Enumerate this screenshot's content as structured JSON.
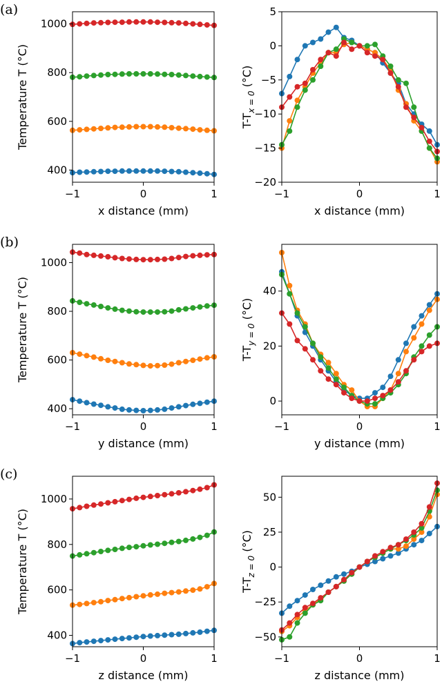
{
  "chart_data": [
    {
      "type": "line",
      "row_label": "(a)",
      "xlabel": "x distance (mm)",
      "ylabel": "Temperature T (°C)",
      "xlim": [
        -1,
        1
      ],
      "ylim": [
        350,
        1050
      ],
      "xticks": [
        -1,
        0,
        1
      ],
      "xtick_labels": [
        "−1",
        "0",
        "1"
      ],
      "yticks": [
        400,
        600,
        800,
        1000
      ],
      "ytick_labels": [
        "400",
        "600",
        "800",
        "1000"
      ],
      "x": [
        -1.0,
        -0.9,
        -0.8,
        -0.7,
        -0.6,
        -0.5,
        -0.4,
        -0.3,
        -0.2,
        -0.1,
        0.0,
        0.1,
        0.2,
        0.3,
        0.4,
        0.5,
        0.6,
        0.7,
        0.8,
        0.9,
        1.0
      ],
      "series": [
        {
          "color": "#1f77b4",
          "values": [
            389,
            391,
            392,
            393,
            394,
            395,
            395,
            396,
            396,
            396,
            396,
            396,
            396,
            395,
            394,
            393,
            391,
            389,
            387,
            385,
            382
          ]
        },
        {
          "color": "#ff7f0e",
          "values": [
            563,
            565,
            567,
            569,
            571,
            573,
            575,
            576,
            577,
            578,
            578,
            578,
            577,
            576,
            574,
            572,
            570,
            568,
            565,
            563,
            561
          ]
        },
        {
          "color": "#2ca02c",
          "values": [
            781,
            783,
            786,
            788,
            790,
            792,
            793,
            794,
            795,
            795,
            795,
            795,
            794,
            793,
            792,
            790,
            788,
            786,
            784,
            782,
            780
          ]
        },
        {
          "color": "#d62728",
          "values": [
            998,
            1000,
            1002,
            1004,
            1005,
            1006,
            1007,
            1007,
            1008,
            1008,
            1008,
            1008,
            1007,
            1006,
            1005,
            1004,
            1002,
            1000,
            998,
            996,
            994
          ]
        }
      ]
    },
    {
      "type": "line",
      "xlabel": "x distance (mm)",
      "ylabel_main": "T-T",
      "ylabel_sub": "x = 0",
      "ylabel_tail": " (°C)",
      "xlim": [
        -1,
        1
      ],
      "ylim": [
        -20,
        5
      ],
      "xticks": [
        -1,
        0,
        1
      ],
      "xtick_labels": [
        "−1",
        "0",
        "1"
      ],
      "yticks": [
        -20,
        -15,
        -10,
        -5,
        0,
        5
      ],
      "ytick_labels": [
        "−20",
        "−15",
        "−10",
        "−5",
        "0",
        "5"
      ],
      "x": [
        -1.0,
        -0.9,
        -0.8,
        -0.7,
        -0.6,
        -0.5,
        -0.4,
        -0.3,
        -0.2,
        -0.1,
        0.0,
        0.1,
        0.2,
        0.3,
        0.4,
        0.5,
        0.6,
        0.7,
        0.8,
        0.9,
        1.0
      ],
      "series": [
        {
          "color": "#1f77b4",
          "values": [
            -7.0,
            -4.5,
            -2.0,
            0.0,
            0.5,
            1.0,
            2.0,
            2.7,
            1.2,
            0.8,
            0.0,
            -0.5,
            -1.0,
            -2.5,
            -4.0,
            -5.5,
            -8.5,
            -10.0,
            -11.5,
            -12.5,
            -14.5
          ]
        },
        {
          "color": "#ff7f0e",
          "values": [
            -15.0,
            -11.0,
            -8.0,
            -6.0,
            -4.0,
            -2.5,
            -1.0,
            -1.0,
            0.2,
            0.5,
            0.0,
            -0.5,
            -1.0,
            -2.0,
            -3.5,
            -6.5,
            -8.5,
            -11.0,
            -12.5,
            -15.0,
            -17.0
          ]
        },
        {
          "color": "#2ca02c",
          "values": [
            -14.5,
            -12.5,
            -9.0,
            -6.5,
            -5.0,
            -3.0,
            -1.0,
            -0.5,
            1.0,
            0.5,
            0.0,
            0.0,
            0.2,
            -1.5,
            -3.0,
            -5.0,
            -5.5,
            -9.0,
            -12.5,
            -15.0,
            -16.5
          ]
        },
        {
          "color": "#d62728",
          "values": [
            -9.0,
            -7.5,
            -6.0,
            -5.5,
            -3.5,
            -2.0,
            -1.0,
            -1.5,
            0.5,
            -0.5,
            0.0,
            -1.0,
            -1.5,
            -2.0,
            -4.0,
            -6.0,
            -9.0,
            -10.5,
            -12.0,
            -14.0,
            -15.5
          ]
        }
      ]
    },
    {
      "type": "line",
      "row_label": "(b)",
      "xlabel": "y distance (mm)",
      "ylabel": "Temperature T (°C)",
      "xlim": [
        -1,
        1
      ],
      "ylim": [
        375,
        1075
      ],
      "xticks": [
        -1,
        0,
        1
      ],
      "xtick_labels": [
        "−1",
        "0",
        "1"
      ],
      "yticks": [
        400,
        600,
        800,
        1000
      ],
      "ytick_labels": [
        "400",
        "600",
        "800",
        "1000"
      ],
      "x": [
        -1.0,
        -0.9,
        -0.8,
        -0.7,
        -0.6,
        -0.5,
        -0.4,
        -0.3,
        -0.2,
        -0.1,
        0.0,
        0.1,
        0.2,
        0.3,
        0.4,
        0.5,
        0.6,
        0.7,
        0.8,
        0.9,
        1.0
      ],
      "series": [
        {
          "color": "#1f77b4",
          "values": [
            437,
            431,
            425,
            419,
            414,
            408,
            403,
            398,
            395,
            393,
            392,
            393,
            395,
            398,
            403,
            408,
            413,
            418,
            422,
            427,
            431
          ]
        },
        {
          "color": "#ff7f0e",
          "values": [
            630,
            624,
            618,
            612,
            605,
            599,
            594,
            589,
            584,
            581,
            578,
            576,
            577,
            579,
            583,
            589,
            594,
            599,
            604,
            609,
            613
          ]
        },
        {
          "color": "#2ca02c",
          "values": [
            843,
            837,
            831,
            826,
            820,
            814,
            809,
            804,
            801,
            798,
            797,
            797,
            797,
            798,
            801,
            806,
            810,
            814,
            818,
            822,
            825
          ]
        },
        {
          "color": "#d62728",
          "values": [
            1043,
            1039,
            1033,
            1030,
            1027,
            1024,
            1020,
            1017,
            1015,
            1013,
            1012,
            1012,
            1013,
            1014,
            1017,
            1021,
            1025,
            1028,
            1030,
            1032,
            1033
          ]
        }
      ]
    },
    {
      "type": "line",
      "xlabel": "y distance (mm)",
      "ylabel_main": "T-T",
      "ylabel_sub": "y = 0",
      "ylabel_tail": " (°C)",
      "xlim": [
        -1,
        1
      ],
      "ylim": [
        -5,
        57
      ],
      "xticks": [
        -1,
        0,
        1
      ],
      "xtick_labels": [
        "−1",
        "0",
        "1"
      ],
      "yticks": [
        0,
        20,
        40
      ],
      "ytick_labels": [
        "0",
        "20",
        "40"
      ],
      "x": [
        -1.0,
        -0.9,
        -0.8,
        -0.7,
        -0.6,
        -0.5,
        -0.4,
        -0.3,
        -0.2,
        -0.1,
        0.0,
        0.1,
        0.2,
        0.3,
        0.4,
        0.5,
        0.6,
        0.7,
        0.8,
        0.9,
        1.0
      ],
      "series": [
        {
          "color": "#1f77b4",
          "values": [
            47,
            39,
            31,
            25,
            20,
            15,
            11,
            7,
            4,
            2,
            1,
            1,
            3,
            5,
            9,
            15,
            21,
            27,
            31,
            35,
            39
          ]
        },
        {
          "color": "#ff7f0e",
          "values": [
            54,
            42,
            33,
            28,
            21,
            17,
            14,
            10,
            6,
            4,
            0,
            -2,
            -2,
            1,
            4,
            10,
            18,
            23,
            28,
            33,
            37
          ]
        },
        {
          "color": "#2ca02c",
          "values": [
            46,
            39,
            32,
            27,
            21,
            16,
            12,
            8,
            5,
            2,
            0,
            -1,
            -1,
            1,
            3,
            6,
            10,
            16,
            20,
            24,
            27
          ]
        },
        {
          "color": "#d62728",
          "values": [
            32,
            28,
            22,
            19,
            15,
            11,
            8,
            6,
            3,
            1,
            0,
            0,
            1,
            2,
            4,
            7,
            11,
            15,
            18,
            20,
            21
          ]
        }
      ]
    },
    {
      "type": "line",
      "row_label": "(c)",
      "xlabel": "z distance (mm)",
      "ylabel": "Temperature T (°C)",
      "xlim": [
        -1,
        1
      ],
      "ylim": [
        350,
        1100
      ],
      "xticks": [
        -1,
        0,
        1
      ],
      "xtick_labels": [
        "−1",
        "0",
        "1"
      ],
      "yticks": [
        400,
        600,
        800,
        1000
      ],
      "ytick_labels": [
        "400",
        "600",
        "800",
        "1000"
      ],
      "x": [
        -1.0,
        -0.9,
        -0.8,
        -0.7,
        -0.6,
        -0.5,
        -0.4,
        -0.3,
        -0.2,
        -0.1,
        0.0,
        0.1,
        0.2,
        0.3,
        0.4,
        0.5,
        0.6,
        0.7,
        0.8,
        0.9,
        1.0
      ],
      "series": [
        {
          "color": "#1f77b4",
          "values": [
            364,
            368,
            371,
            374,
            377,
            380,
            383,
            386,
            389,
            392,
            395,
            397,
            399,
            401,
            403,
            405,
            408,
            411,
            414,
            418,
            422
          ]
        },
        {
          "color": "#ff7f0e",
          "values": [
            533,
            536,
            540,
            544,
            548,
            553,
            557,
            562,
            566,
            570,
            574,
            578,
            581,
            585,
            588,
            591,
            595,
            599,
            604,
            614,
            628
          ]
        },
        {
          "color": "#2ca02c",
          "values": [
            749,
            754,
            759,
            764,
            769,
            774,
            778,
            783,
            787,
            790,
            794,
            798,
            801,
            805,
            809,
            813,
            818,
            824,
            831,
            840,
            855
          ]
        },
        {
          "color": "#d62728",
          "values": [
            957,
            962,
            968,
            973,
            978,
            983,
            988,
            993,
            998,
            1003,
            1007,
            1011,
            1015,
            1019,
            1023,
            1027,
            1032,
            1037,
            1043,
            1050,
            1062
          ]
        }
      ]
    },
    {
      "type": "line",
      "xlabel": "z distance (mm)",
      "ylabel_main": "T-T",
      "ylabel_sub": "z = 0",
      "ylabel_tail": " (°C)",
      "xlim": [
        -1,
        1
      ],
      "ylim": [
        -57,
        65
      ],
      "xticks": [
        -1,
        0,
        1
      ],
      "xtick_labels": [
        "−1",
        "0",
        "1"
      ],
      "yticks": [
        -50,
        -25,
        0,
        25,
        50
      ],
      "ytick_labels": [
        "−50",
        "−25",
        "0",
        "25",
        "50"
      ],
      "x": [
        -1.0,
        -0.9,
        -0.8,
        -0.7,
        -0.6,
        -0.5,
        -0.4,
        -0.3,
        -0.2,
        -0.1,
        0.0,
        0.1,
        0.2,
        0.3,
        0.4,
        0.5,
        0.6,
        0.7,
        0.8,
        0.9,
        1.0
      ],
      "series": [
        {
          "color": "#1f77b4",
          "values": [
            -33,
            -28,
            -24,
            -20,
            -16,
            -13,
            -10,
            -7,
            -5,
            -3,
            0,
            2,
            4,
            6,
            8,
            10,
            13,
            16,
            19,
            24,
            29
          ]
        },
        {
          "color": "#ff7f0e",
          "values": [
            -46,
            -42,
            -36,
            -31,
            -27,
            -23,
            -18,
            -14,
            -10,
            -5,
            0,
            4,
            7,
            10,
            13,
            13,
            15,
            20,
            25,
            36,
            52
          ]
        },
        {
          "color": "#2ca02c",
          "values": [
            -52,
            -50,
            -40,
            -33,
            -27,
            -24,
            -18,
            -14,
            -10,
            -5,
            0,
            4,
            7,
            10,
            13,
            16,
            19,
            23,
            28,
            40,
            55
          ]
        },
        {
          "color": "#d62728",
          "values": [
            -45,
            -40,
            -34,
            -29,
            -26,
            -22,
            -18,
            -14,
            -9,
            -4,
            0,
            4,
            8,
            11,
            14,
            16,
            20,
            25,
            31,
            43,
            60
          ]
        }
      ]
    }
  ]
}
